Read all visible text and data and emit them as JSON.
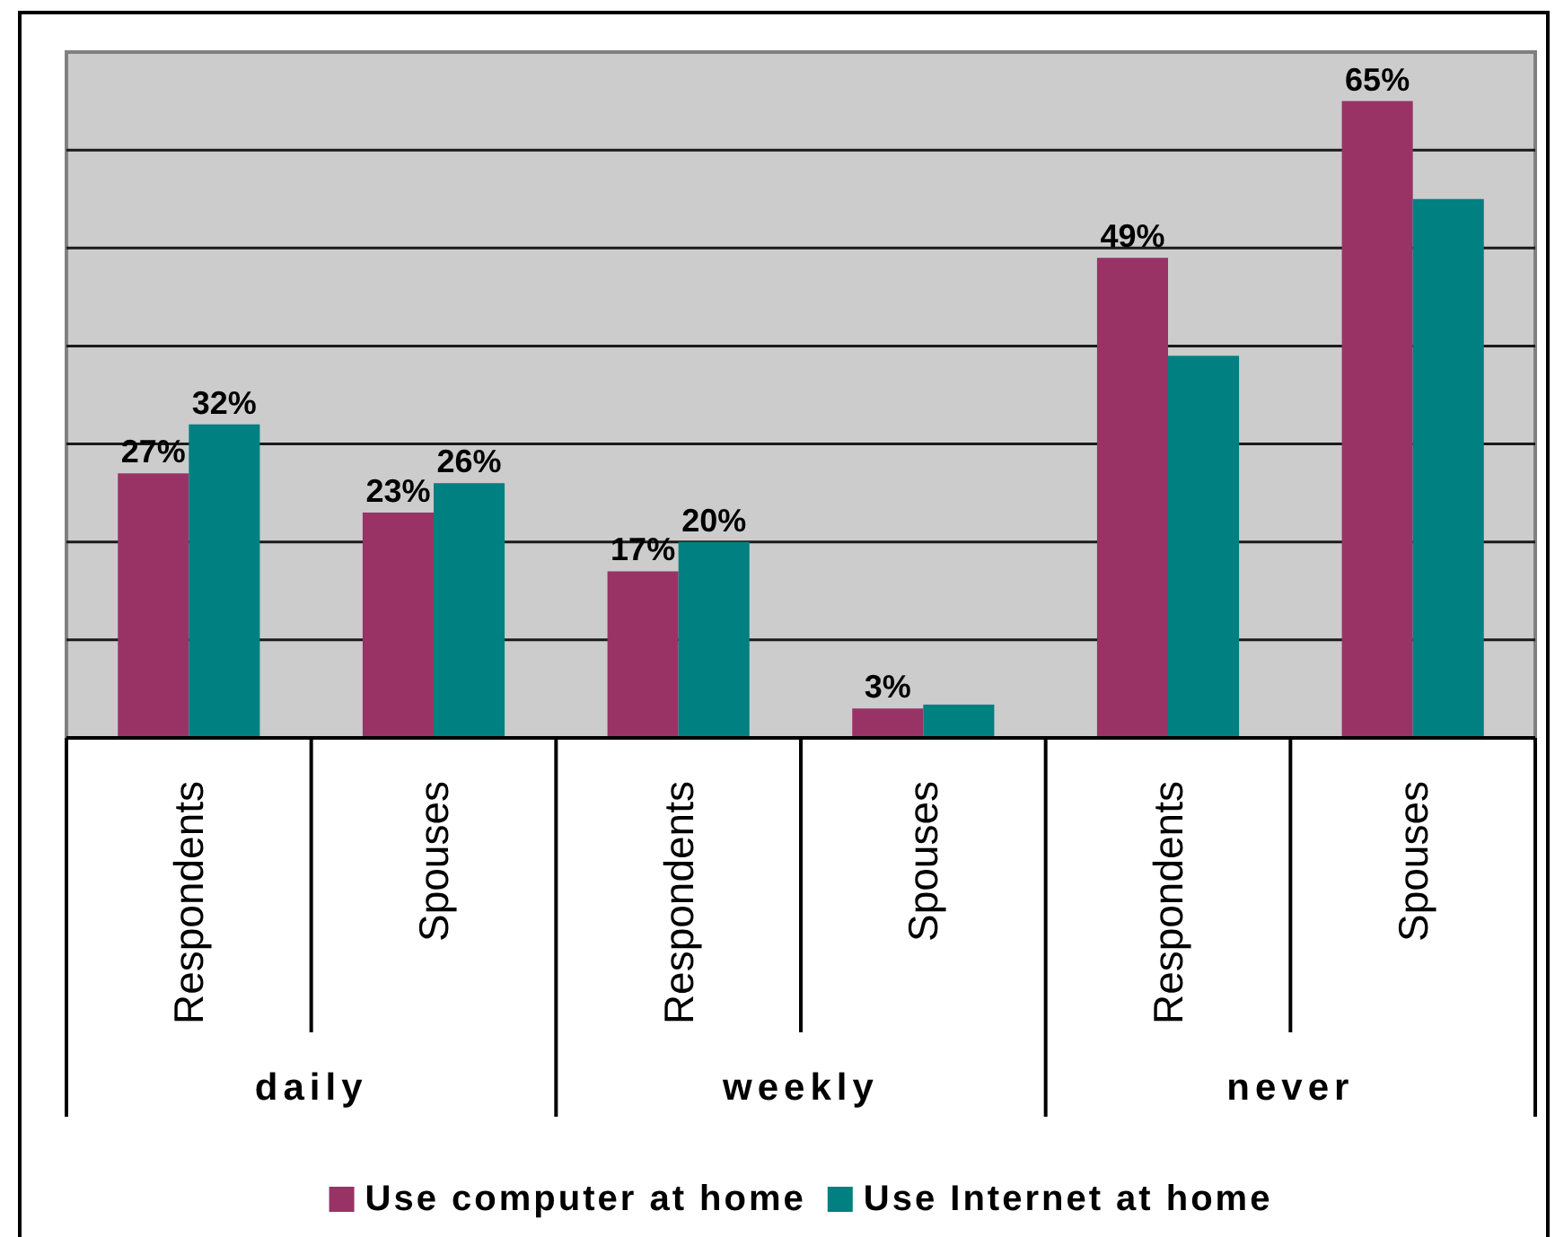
{
  "chart_data": {
    "type": "bar",
    "categories": [
      "Respondents",
      "Spouses",
      "Respondents",
      "Spouses",
      "Respondents",
      "Spouses"
    ],
    "series": [
      {
        "name": "Use computer at home",
        "color": "#993366",
        "values": [
          27,
          23,
          17,
          3,
          49,
          65
        ],
        "value_labels": [
          "27%",
          "23%",
          "17%",
          "3%",
          "49%",
          "65%"
        ]
      },
      {
        "name": "Use Internet at home",
        "color": "#008080",
        "values": [
          32,
          26,
          20,
          3.4,
          39,
          55
        ],
        "value_labels": [
          "32%",
          "26%",
          "20%",
          null,
          null,
          null
        ]
      }
    ],
    "ylim": [
      0,
      70
    ],
    "yticks": [
      {
        "value": 10,
        "label": null
      },
      {
        "value": 20,
        "label": null
      },
      {
        "value": 30,
        "label": null
      },
      {
        "value": 40,
        "label": null
      },
      {
        "value": 50,
        "label": null
      },
      {
        "value": 60,
        "label": null
      }
    ],
    "grid": "y",
    "legend": "bottom",
    "tick_labels": "x",
    "annotations": [
      "daily",
      "weekly",
      "never"
    ]
  }
}
